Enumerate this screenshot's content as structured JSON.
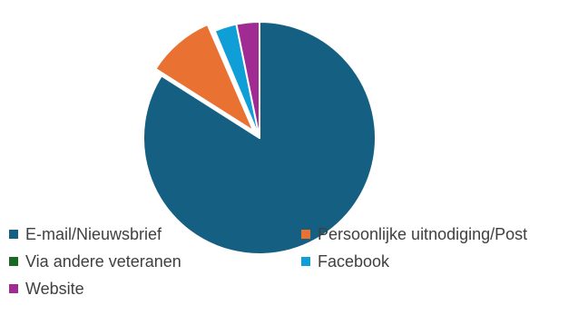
{
  "chart_data": {
    "type": "pie",
    "title": "",
    "series": [
      {
        "slices": [
          {
            "label": "E-mail/Nieuwsbrief",
            "value": 84,
            "color": "#156082"
          },
          {
            "label": "Persoonlijke uitnodiging/Post",
            "value": 9.5,
            "color": "#E97132",
            "exploded": true
          },
          {
            "label": "Via andere veteranen",
            "value": 0.2,
            "color": "#196B24"
          },
          {
            "label": "Facebook",
            "value": 3.1,
            "color": "#0F9ED5"
          },
          {
            "label": "Website",
            "value": 3.2,
            "color": "#A02B93"
          }
        ]
      }
    ],
    "legend": {
      "placement": "bottom",
      "items": [
        "E-mail/Nieuwsbrief",
        "Persoonlijke uitnodiging/Post",
        "Via andere veteranen",
        "Facebook",
        "Website"
      ]
    }
  }
}
